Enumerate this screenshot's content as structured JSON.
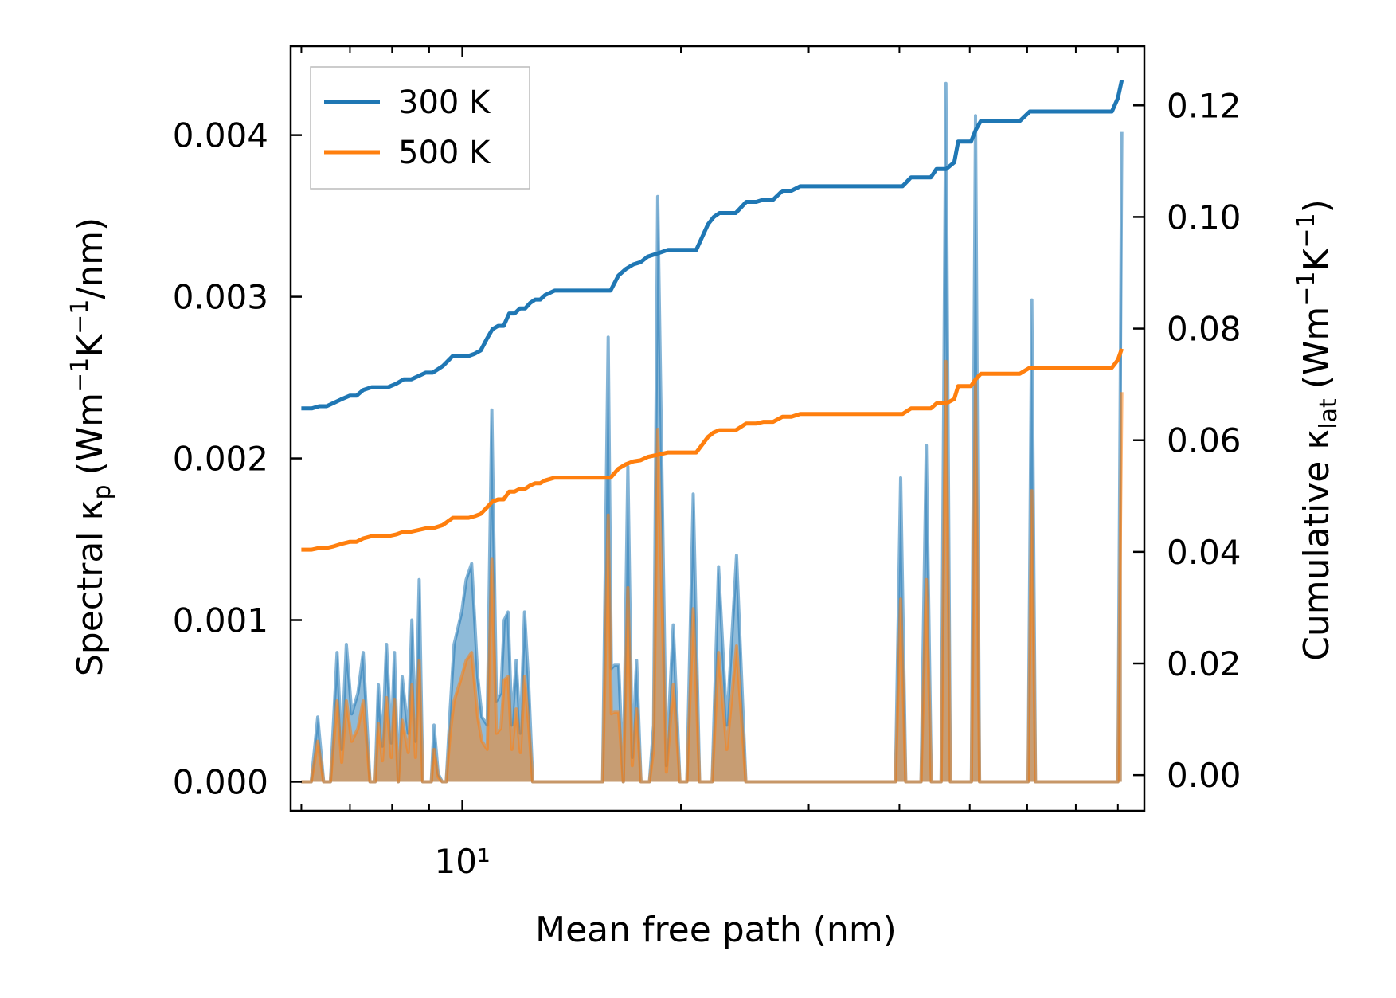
{
  "chart_data": {
    "type": "line",
    "xlabel": "Mean free path (nm)",
    "x_scale": "log",
    "xlim": [
      5.8,
      87
    ],
    "x_major_ticks": [
      10
    ],
    "x_major_tick_labels": [
      "10¹"
    ],
    "x_minor_ticks": [
      6,
      7,
      8,
      9,
      20,
      30,
      40,
      50,
      60,
      70,
      80
    ],
    "left_axis": {
      "label_text": "Spectral κ",
      "label_sub": "p",
      "label_unit_pre": "(Wm",
      "label_sup1": "−1",
      "label_mid": "K",
      "label_sup2": "−1",
      "label_unit_post": "/nm)",
      "ylim": [
        -0.00018,
        0.00455
      ],
      "ticks": [
        0.0,
        0.001,
        0.002,
        0.003,
        0.004
      ],
      "tick_labels": [
        "0.000",
        "0.001",
        "0.002",
        "0.003",
        "0.004"
      ]
    },
    "right_axis": {
      "label_text": "Cumulative κ",
      "label_sub": "lat",
      "label_unit_pre": "(Wm",
      "label_sup1": "−1",
      "label_mid": "K",
      "label_sup2": "−1",
      "label_unit_post": ")",
      "ylim": [
        -0.0064,
        0.1306
      ],
      "ticks": [
        0.0,
        0.02,
        0.04,
        0.06,
        0.08,
        0.1,
        0.12
      ],
      "tick_labels": [
        "0.00",
        "0.02",
        "0.04",
        "0.06",
        "0.08",
        "0.10",
        "0.12"
      ]
    },
    "legend": {
      "position": "top-left",
      "entries": [
        {
          "label": "300 K",
          "color": "#1f77b4"
        },
        {
          "label": "500 K",
          "color": "#ff7f0e"
        }
      ]
    },
    "spectral_x": [
      6.0,
      6.19,
      6.32,
      6.44,
      6.58,
      6.72,
      6.82,
      6.92,
      7.04,
      7.18,
      7.3,
      7.46,
      7.58,
      7.66,
      7.76,
      7.86,
      7.98,
      8.06,
      8.16,
      8.26,
      8.42,
      8.52,
      8.62,
      8.72,
      8.82,
      8.94,
      9.06,
      9.14,
      9.26,
      9.38,
      9.5,
      9.62,
      9.74,
      9.98,
      10.12,
      10.3,
      10.5,
      10.64,
      10.82,
      10.98,
      11.14,
      11.3,
      11.42,
      11.56,
      11.7,
      11.86,
      12.02,
      12.18,
      12.34,
      12.5,
      12.66,
      12.82,
      12.98,
      13.14,
      13.3,
      13.46,
      13.62,
      13.78,
      14.0,
      14.2,
      14.4,
      15.6,
      15.88,
      16.04,
      16.2,
      16.42,
      16.66,
      16.9,
      17.14,
      17.38,
      17.62,
      17.86,
      18.1,
      18.34,
      18.58,
      19.1,
      19.52,
      19.94,
      20.38,
      20.8,
      21.22,
      21.64,
      22.08,
      22.54,
      23.14,
      23.86,
      24.58,
      25.3,
      26.02,
      26.74,
      27.46,
      28.18,
      28.9,
      29.62,
      30.34,
      39.5,
      40.16,
      40.82,
      41.48,
      42.14,
      42.84,
      43.56,
      44.26,
      44.96,
      45.66,
      46.36,
      47.02,
      47.68,
      48.34,
      48.98,
      49.62,
      50.26,
      50.92,
      51.58,
      52.24,
      52.88,
      58.0,
      58.72,
      59.44,
      60.16,
      60.88,
      61.6,
      62.32,
      79.0,
      80.0,
      81.0
    ],
    "spectral_300K": [
      0,
      0,
      0.0004,
      0,
      0,
      0.0008,
      0.0002,
      0.00085,
      0.00042,
      0.00055,
      0.0008,
      0,
      0,
      0.0006,
      0.00022,
      0.00085,
      0.00024,
      0.0008,
      0,
      0.00065,
      0.0003,
      0.001,
      0.00025,
      0.00125,
      0,
      0,
      0,
      0.00035,
      5e-05,
      0,
      0,
      0.00045,
      0.00085,
      0.00105,
      0.00125,
      0.00135,
      0.00065,
      0.0004,
      0.00035,
      0.0023,
      0.0005,
      0.00055,
      0.001,
      0.00105,
      0.00035,
      0.00075,
      0.0003,
      0.00105,
      0.0006,
      0,
      0,
      0,
      0,
      0,
      0,
      0,
      0,
      0,
      0,
      0,
      0,
      0,
      0.00275,
      0.0007,
      0.00072,
      0.00072,
      0,
      0.00195,
      0.00015,
      0.00075,
      0,
      0,
      0,
      0.00035,
      0.00362,
      0.0001,
      0.00097,
      0,
      0,
      0.00178,
      0,
      0,
      0,
      0.00133,
      0.00035,
      0.0014,
      0,
      0,
      0,
      0,
      0,
      0,
      0,
      0,
      0,
      0,
      0.00188,
      0,
      0,
      0,
      0,
      0.00208,
      0,
      0,
      0,
      0.00432,
      0,
      0,
      0,
      0,
      0,
      0,
      0.00412,
      0,
      0,
      0,
      0,
      0,
      0,
      0,
      0.00298,
      0,
      0,
      0,
      0,
      0.00402
    ],
    "spectral_500K": [
      0,
      0,
      0.00025,
      0,
      0,
      0.0005,
      0.00012,
      0.0005,
      0.00025,
      0.00033,
      0.0005,
      0,
      0,
      0.00036,
      0.00013,
      0.00052,
      0.00015,
      0.00051,
      0,
      0.00038,
      0.00018,
      0.0006,
      0.00015,
      0.00075,
      0,
      0,
      0,
      0.0002,
      3e-05,
      0,
      0,
      0.0003,
      0.0005,
      0.00065,
      0.00075,
      0.0008,
      0.0004,
      0.00025,
      0.0002,
      0.00138,
      0.0003,
      0.00033,
      0.00063,
      0.00065,
      0.0002,
      0.00045,
      0.00018,
      0.00065,
      0.00035,
      0,
      0,
      0,
      0,
      0,
      0,
      0,
      0,
      0,
      0,
      0,
      0,
      0,
      0.00165,
      0.00042,
      0.00043,
      0.00043,
      0,
      0.0012,
      0.0001,
      0.00045,
      0,
      0,
      0,
      0.0002,
      0.00218,
      6e-05,
      0.0006,
      0,
      0,
      0.00107,
      0,
      0,
      0,
      0.0008,
      0.0002,
      0.00084,
      0,
      0,
      0,
      0,
      0,
      0,
      0,
      0,
      0,
      0,
      0.00113,
      0,
      0,
      0,
      0,
      0.00125,
      0,
      0,
      0,
      0.0026,
      0,
      0,
      0,
      0,
      0,
      0,
      0.00248,
      0,
      0,
      0,
      0,
      0,
      0,
      0,
      0.0018,
      0,
      0,
      0,
      0,
      0.00241
    ],
    "cumulative_x": [
      6.0,
      6.2,
      6.35,
      6.5,
      6.65,
      6.8,
      7.0,
      7.15,
      7.3,
      7.5,
      7.7,
      7.9,
      8.1,
      8.3,
      8.5,
      8.7,
      8.9,
      9.1,
      9.4,
      9.7,
      10.0,
      10.2,
      10.4,
      10.6,
      10.8,
      11.0,
      11.2,
      11.4,
      11.6,
      11.8,
      12.0,
      12.2,
      12.4,
      12.6,
      12.8,
      13.0,
      13.4,
      14.0,
      15.0,
      15.8,
      16.0,
      16.4,
      16.8,
      17.2,
      17.6,
      18.0,
      18.6,
      19.2,
      19.6,
      20.0,
      21.0,
      21.8,
      22.2,
      22.6,
      23.2,
      23.8,
      24.6,
      25.4,
      26.0,
      26.8,
      27.6,
      28.4,
      29.2,
      30.0,
      32.0,
      36.0,
      39.4,
      40.4,
      41.5,
      43.0,
      44.2,
      45.0,
      46.4,
      47.6,
      48.2,
      49.5,
      50.2,
      51.0,
      51.8,
      54.0,
      57.8,
      58.6,
      60.5,
      62.0,
      63.0,
      68.0,
      70.0,
      72.5,
      74.0,
      76.0,
      78.5,
      80.0,
      81.0
    ],
    "cumulative_300K": [
      0.0657,
      0.0657,
      0.0661,
      0.0661,
      0.0667,
      0.0673,
      0.068,
      0.068,
      0.069,
      0.0695,
      0.0695,
      0.0695,
      0.0701,
      0.0709,
      0.0709,
      0.0715,
      0.0721,
      0.0721,
      0.0733,
      0.0751,
      0.0751,
      0.0751,
      0.0755,
      0.0761,
      0.0781,
      0.0799,
      0.0805,
      0.0805,
      0.0827,
      0.0827,
      0.0836,
      0.0836,
      0.0846,
      0.0852,
      0.0852,
      0.086,
      0.0868,
      0.0868,
      0.0868,
      0.0868,
      0.0868,
      0.0895,
      0.0907,
      0.0915,
      0.0919,
      0.0929,
      0.0935,
      0.0941,
      0.0941,
      0.0941,
      0.0941,
      0.0987,
      0.1,
      0.1007,
      0.1007,
      0.1007,
      0.1027,
      0.1027,
      0.1031,
      0.1031,
      0.1047,
      0.1047,
      0.1055,
      0.1055,
      0.1055,
      0.1055,
      0.1055,
      0.1055,
      0.1071,
      0.1071,
      0.1071,
      0.1086,
      0.1086,
      0.1098,
      0.1135,
      0.1135,
      0.1135,
      0.1157,
      0.1172,
      0.1172,
      0.1172,
      0.1172,
      0.1189,
      0.1189,
      0.1189,
      0.1189,
      0.1189,
      0.1189,
      0.1189,
      0.1189,
      0.1189,
      0.1213,
      0.1245
    ],
    "cumulative_500K": [
      0.0404,
      0.0404,
      0.0407,
      0.0407,
      0.041,
      0.0414,
      0.0418,
      0.0418,
      0.0424,
      0.0428,
      0.0428,
      0.0428,
      0.0431,
      0.0436,
      0.0436,
      0.0439,
      0.0442,
      0.0442,
      0.0448,
      0.0461,
      0.0461,
      0.0461,
      0.0464,
      0.0468,
      0.0479,
      0.049,
      0.0494,
      0.0494,
      0.0508,
      0.0508,
      0.0513,
      0.0513,
      0.0519,
      0.0523,
      0.0523,
      0.0528,
      0.0533,
      0.0533,
      0.0533,
      0.0533,
      0.0533,
      0.0549,
      0.0557,
      0.0562,
      0.0564,
      0.057,
      0.0574,
      0.0578,
      0.0578,
      0.0578,
      0.0578,
      0.0606,
      0.0614,
      0.0618,
      0.0618,
      0.0618,
      0.063,
      0.063,
      0.0633,
      0.0633,
      0.0642,
      0.0642,
      0.0647,
      0.0647,
      0.0647,
      0.0647,
      0.0647,
      0.0647,
      0.0657,
      0.0657,
      0.0657,
      0.0666,
      0.0666,
      0.0674,
      0.0697,
      0.0697,
      0.0697,
      0.071,
      0.0719,
      0.0719,
      0.0719,
      0.0719,
      0.073,
      0.073,
      0.073,
      0.073,
      0.073,
      0.073,
      0.073,
      0.073,
      0.073,
      0.0744,
      0.0764
    ]
  }
}
